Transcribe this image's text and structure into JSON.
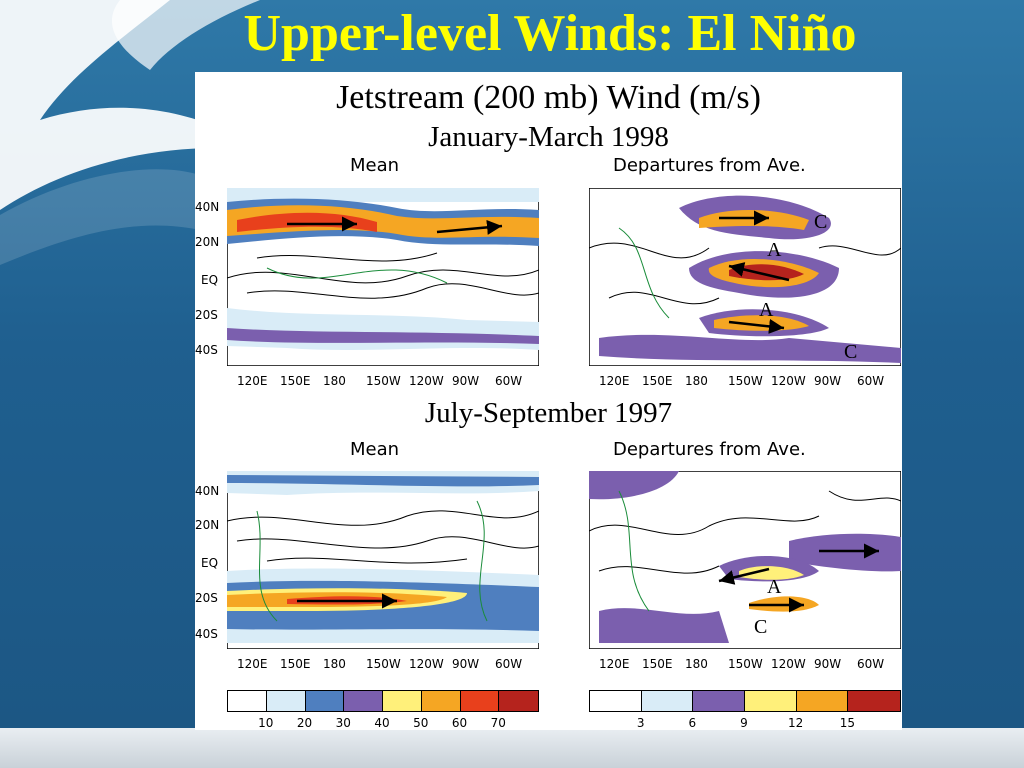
{
  "slide": {
    "title": "Upper-level Winds: El Niño"
  },
  "figure": {
    "title": "Jetstream (200 mb) Wind (m/s)",
    "sections": [
      {
        "period": "January-March 1998"
      },
      {
        "period": "July-September 1997"
      }
    ],
    "panel_labels": {
      "mean": "Mean",
      "departures": "Departures from Ave."
    },
    "lat_labels": [
      "40N",
      "20N",
      "EQ",
      "20S",
      "40S"
    ],
    "lon_labels_top": [
      "120E",
      "150E",
      "180",
      "150W",
      "120W",
      "90W",
      "60W"
    ],
    "lon_labels_bottom": [
      "120E",
      "150E",
      "180",
      "150W",
      "120W",
      "90W",
      "60W"
    ],
    "mean_colorbar": {
      "ticks": [
        "10",
        "20",
        "30",
        "40",
        "50",
        "60",
        "70"
      ],
      "colors": [
        "#ffffff",
        "#d9ecf7",
        "#4f7fbf",
        "#7b5fae",
        "#fff07a",
        "#f5a623",
        "#e8401c",
        "#b5231d"
      ]
    },
    "anom_colorbar": {
      "ticks": [
        "3",
        "6",
        "9",
        "12",
        "15"
      ],
      "colors": [
        "#ffffff",
        "#d9ecf7",
        "#7b5fae",
        "#fff07a",
        "#f5a623",
        "#b5231d"
      ]
    },
    "map_markers": {
      "anticyclone": "A",
      "cyclone": "C"
    }
  }
}
